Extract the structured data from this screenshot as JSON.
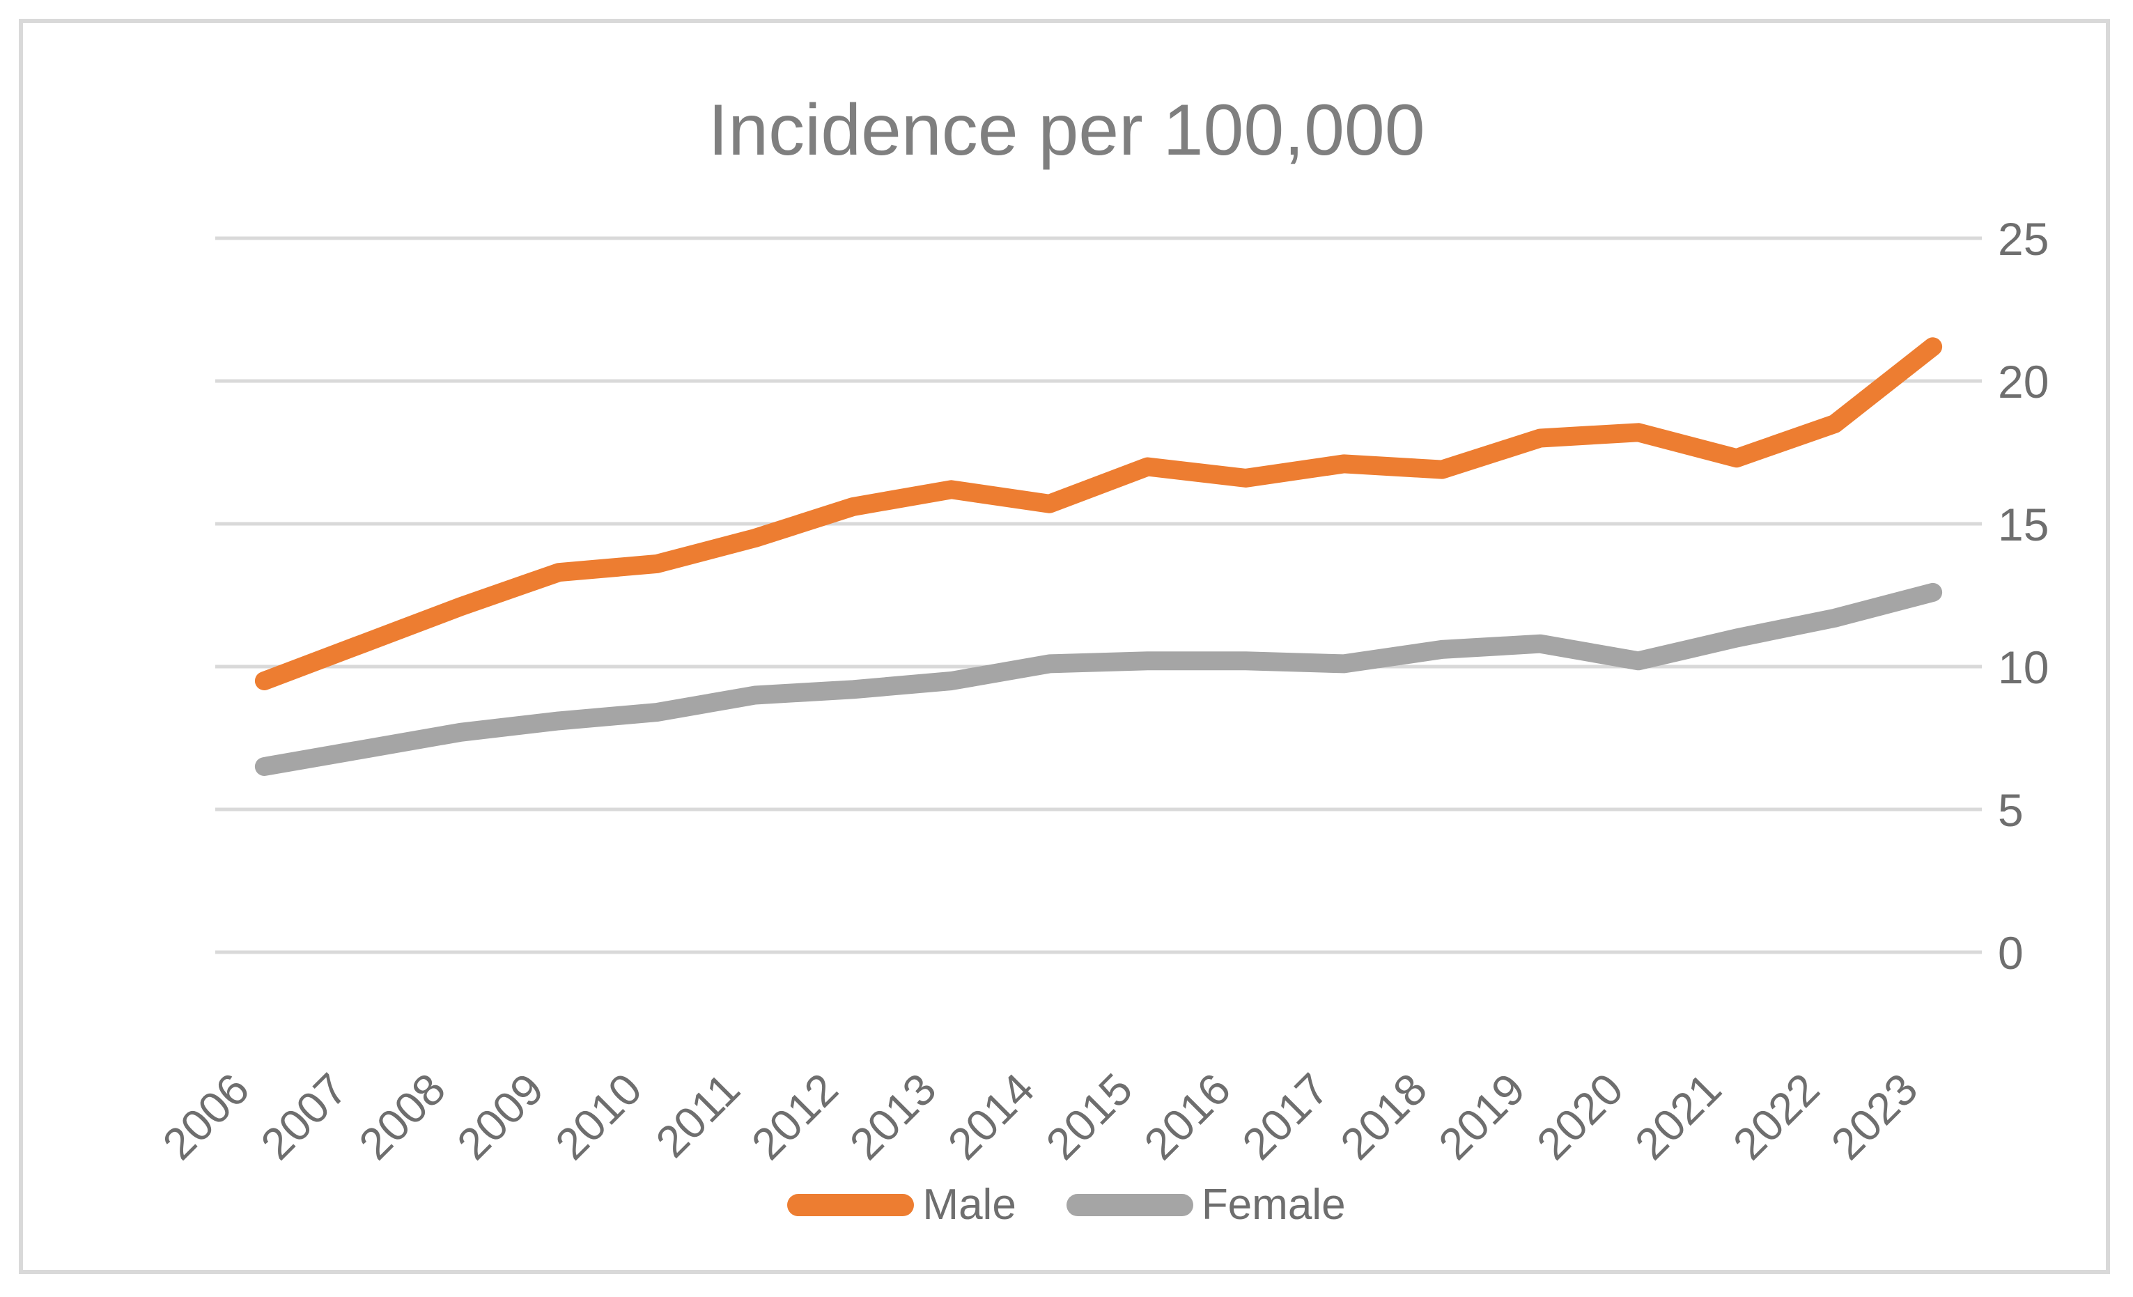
{
  "title": "Incidence per 100,000",
  "colors": {
    "male_line": "#ED7D31",
    "female_line": "#A5A5A5",
    "gridline": "#D9D9D9",
    "border": "#D9D9D9",
    "title_text": "#7F7F7F",
    "axis_text": "#6E6E6E",
    "legend_text": "#6E6E6E",
    "background": "#FFFFFF"
  },
  "legend": {
    "position": "bottom",
    "items": [
      {
        "label": "Male",
        "swatch": "male-line-swatch"
      },
      {
        "label": "Female",
        "swatch": "female-line-swatch"
      }
    ]
  },
  "chart_data": {
    "type": "line",
    "title": "Incidence per 100,000",
    "categories": [
      "2006",
      "2007",
      "2008",
      "2009",
      "2010",
      "2011",
      "2012",
      "2013",
      "2014",
      "2015",
      "2016",
      "2017",
      "2018",
      "2019",
      "2020",
      "2021",
      "2022",
      "2023"
    ],
    "series": [
      {
        "name": "Male",
        "color": "#ED7D31",
        "values": [
          9.5,
          10.8,
          12.1,
          13.3,
          13.6,
          14.5,
          15.6,
          16.2,
          15.7,
          17.0,
          16.6,
          17.1,
          16.9,
          18.0,
          18.2,
          17.3,
          18.5,
          21.2
        ]
      },
      {
        "name": "Female",
        "color": "#A5A5A5",
        "values": [
          6.5,
          7.1,
          7.7,
          8.1,
          8.4,
          9.0,
          9.2,
          9.5,
          10.1,
          10.2,
          10.2,
          10.1,
          10.6,
          10.8,
          10.2,
          11.0,
          11.7,
          12.6
        ]
      }
    ],
    "xlabel": "",
    "ylabel": "",
    "ylim": [
      0,
      25
    ],
    "yticks": [
      0,
      5,
      10,
      15,
      20,
      25
    ],
    "y_axis_side": "right",
    "grid": "horizontal",
    "x_label_rotation_deg": 45,
    "legend_position": "bottom"
  }
}
